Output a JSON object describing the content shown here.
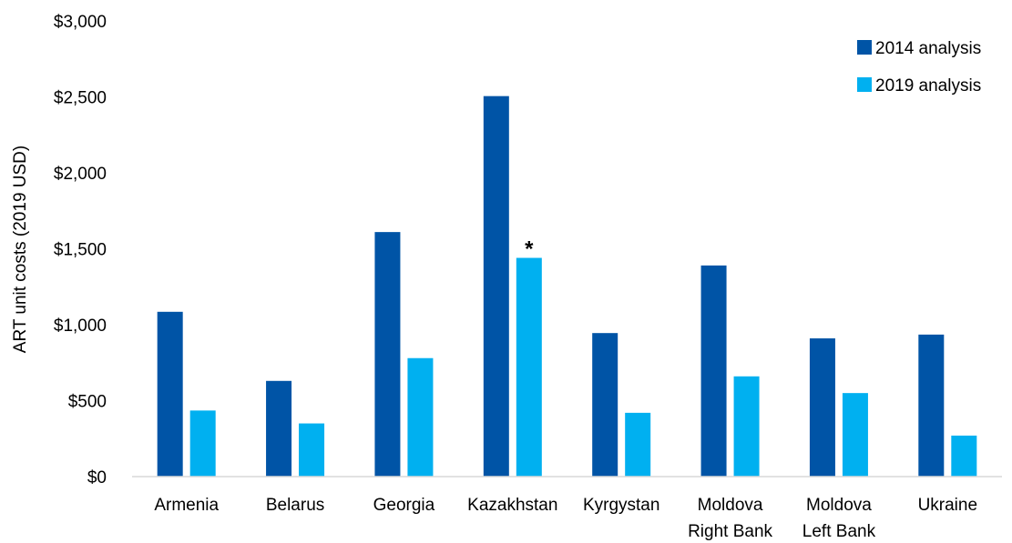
{
  "chart_data": {
    "type": "bar",
    "title": "",
    "xlabel": "",
    "ylabel": "ART unit costs (2019 USD)",
    "ylim": [
      0,
      3000
    ],
    "yticks": [
      0,
      500,
      1000,
      1500,
      2000,
      2500,
      3000
    ],
    "ytick_labels": [
      "$0",
      "$500",
      "$1,000",
      "$1,500",
      "$2,000",
      "$2,500",
      "$3,000"
    ],
    "grid": false,
    "legend_position": "top-right",
    "categories": [
      [
        "Armenia"
      ],
      [
        "Belarus"
      ],
      [
        "Georgia"
      ],
      [
        "Kazakhstan"
      ],
      [
        "Kyrgystan"
      ],
      [
        "Moldova",
        "Right Bank"
      ],
      [
        "Moldova",
        "Left Bank"
      ],
      [
        "Ukraine"
      ]
    ],
    "series": [
      {
        "name": "2014 analysis",
        "color": "#0054A6",
        "values": [
          1085,
          630,
          1610,
          2505,
          945,
          1390,
          910,
          935
        ]
      },
      {
        "name": "2019 analysis",
        "color": "#00B0F0",
        "values": [
          435,
          350,
          780,
          1440,
          420,
          660,
          550,
          270
        ]
      }
    ],
    "annotations": [
      {
        "text": "*",
        "category_index": 3,
        "series_index": 1
      }
    ]
  }
}
